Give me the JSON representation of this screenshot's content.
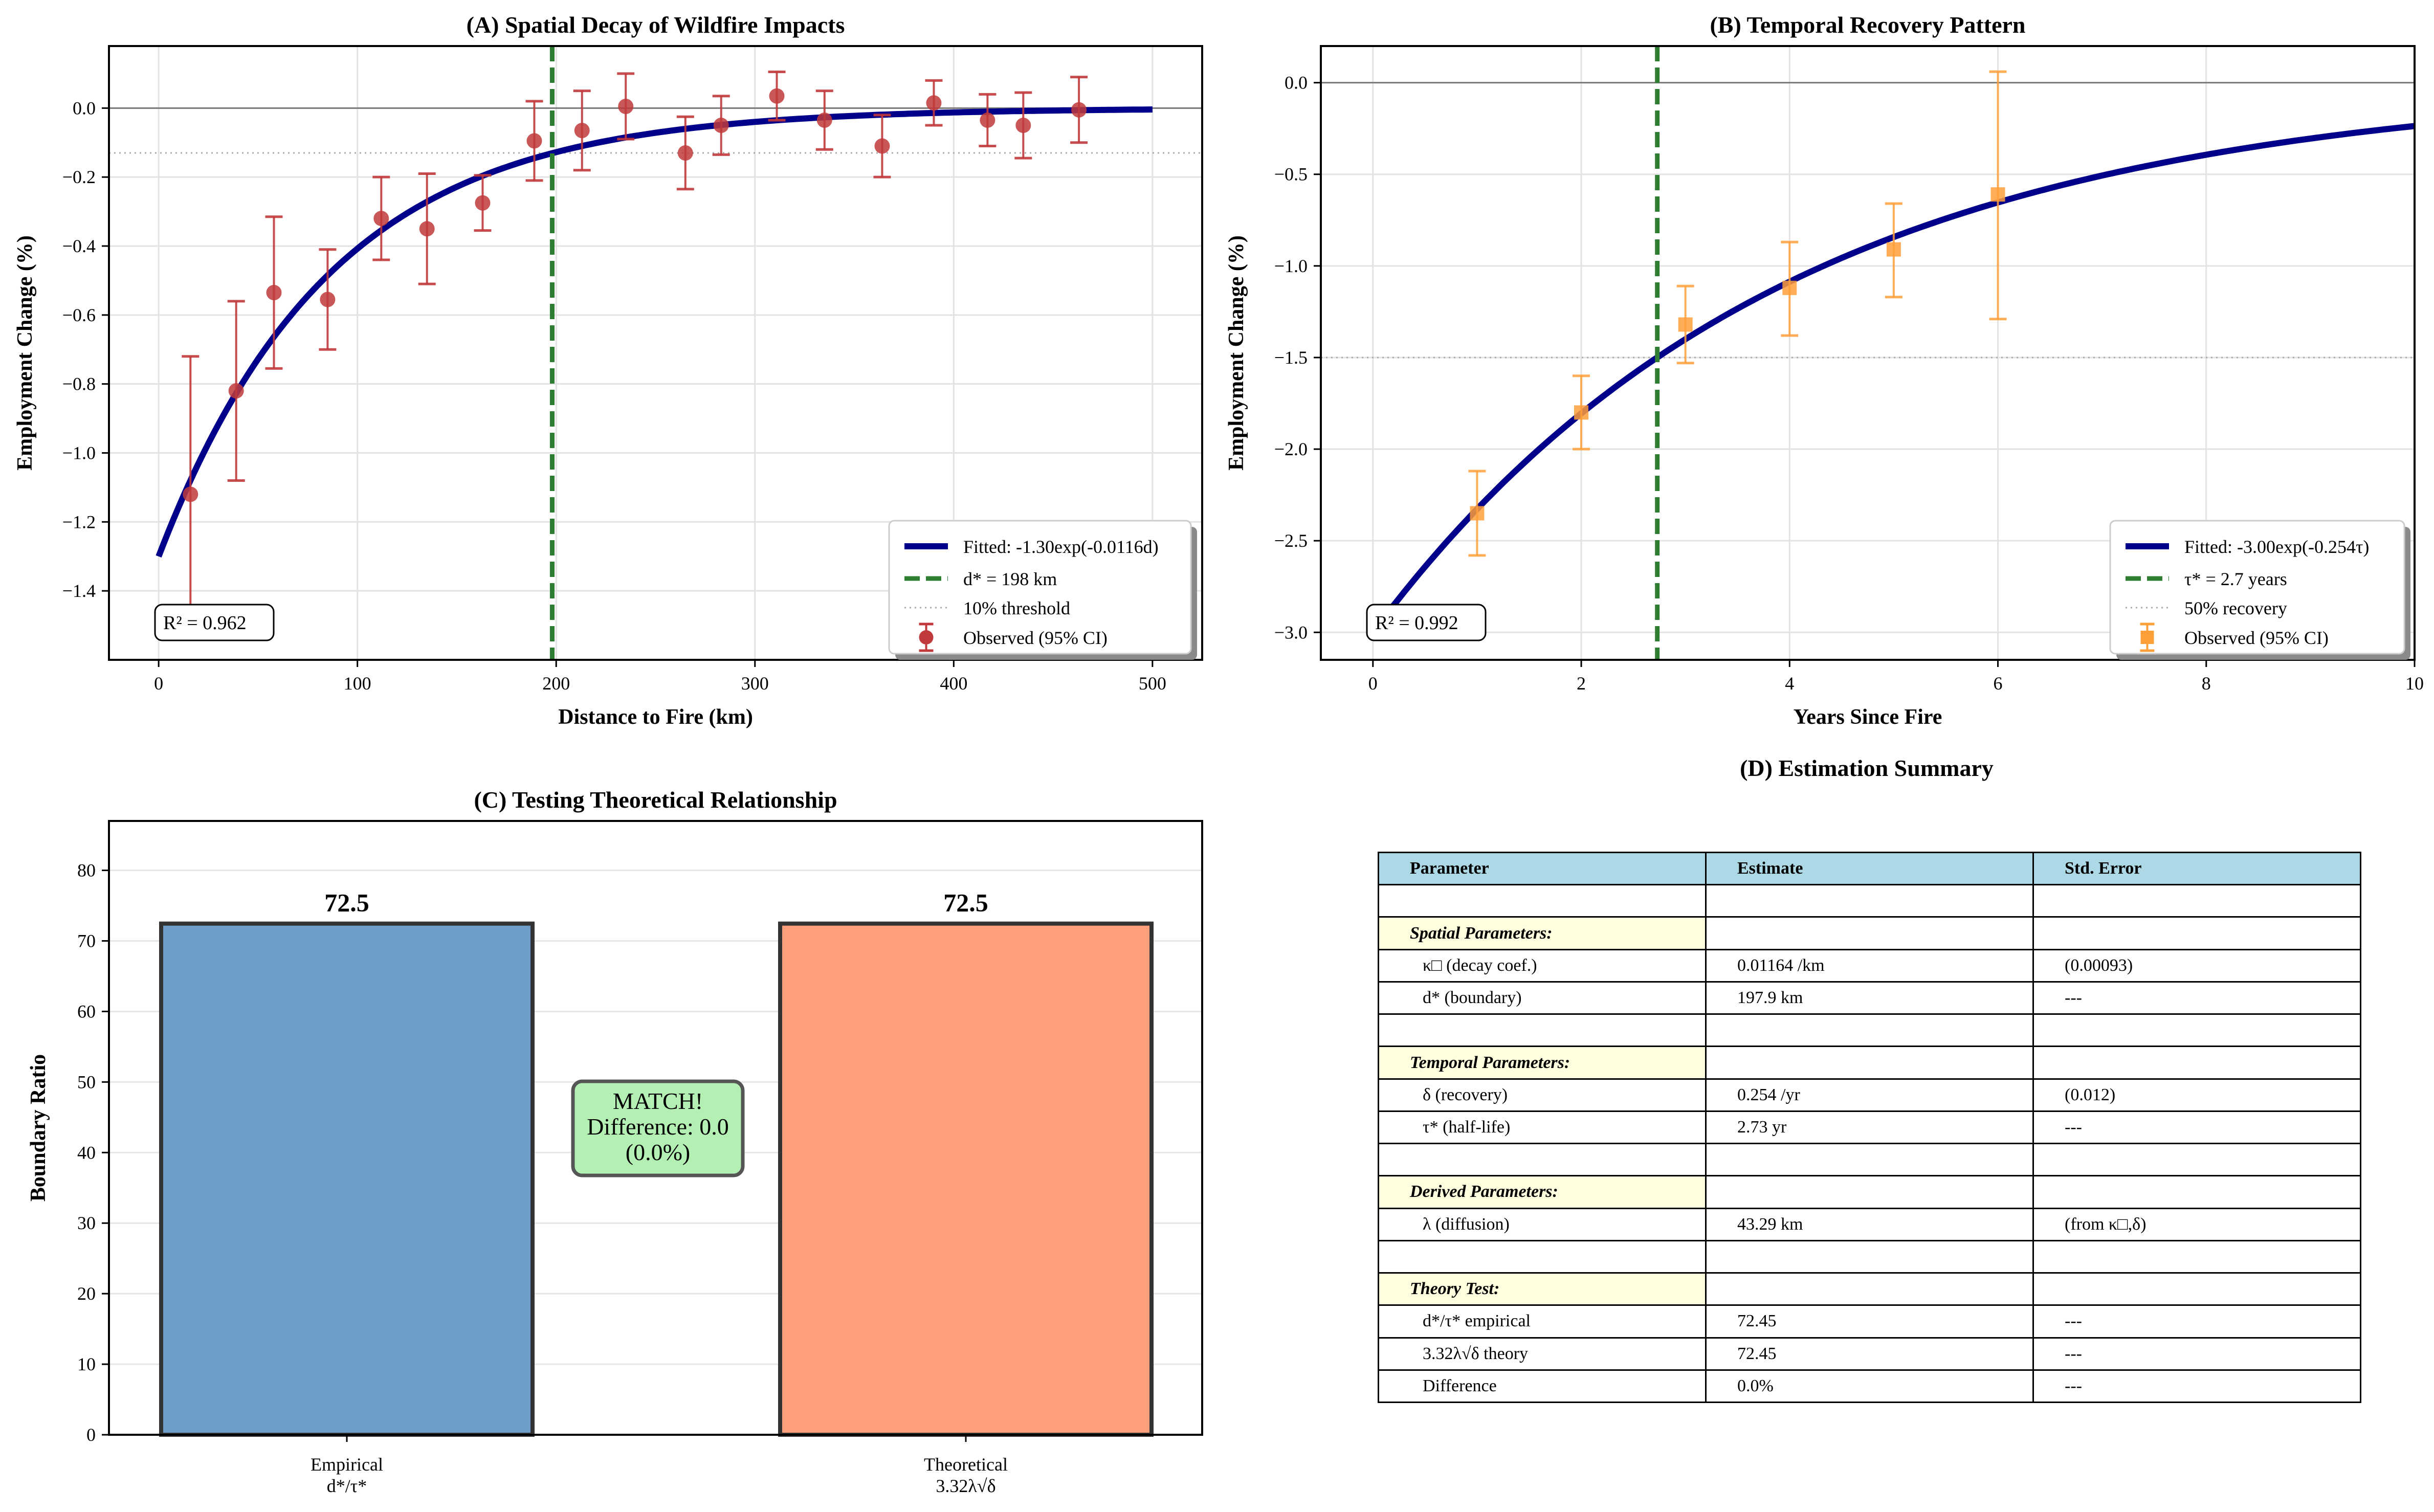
{
  "colors": {
    "fit": "#00008b",
    "boundary": "#2e7d32",
    "obsA": "#c0393b",
    "obsB": "#ff9f3a",
    "barEmp": "#6e9ec7",
    "barTheo": "#ffa07a",
    "badge": "#b4f0b4"
  },
  "panelA": {
    "title": "(A) Spatial Decay of Wildfire Impacts",
    "xlabel": "Distance to Fire (km)",
    "ylabel": "Employment Change (%)",
    "r2": "R² = 0.962",
    "legend": {
      "fit": "Fitted: -1.30exp(-0.0116d)",
      "boundary": "d* = 198 km",
      "threshold": "10% threshold",
      "obs": "Observed (95% CI)"
    }
  },
  "panelB": {
    "title": "(B) Temporal Recovery Pattern",
    "xlabel": "Years Since Fire",
    "ylabel": "Employment Change (%)",
    "r2": "R² = 0.992",
    "legend": {
      "fit": "Fitted: -3.00exp(-0.254τ)",
      "boundary": "τ* = 2.7 years",
      "threshold": "50% recovery",
      "obs": "Observed (95% CI)"
    }
  },
  "panelC": {
    "title": "(C) Testing Theoretical Relationship",
    "ylabel": "Boundary Ratio",
    "badge": {
      "line1": "MATCH!",
      "line2": "Difference: 0.0",
      "line3": "(0.0%)"
    }
  },
  "panelD": {
    "title": "(D) Estimation Summary",
    "headers": [
      "Parameter",
      "Estimate",
      "Std. Error"
    ],
    "rows": [
      {
        "p": "",
        "e": "",
        "s": "",
        "type": "blank"
      },
      {
        "p": "Spatial Parameters:",
        "e": "",
        "s": "",
        "type": "section"
      },
      {
        "p": "κ□ (decay coef.)",
        "e": "0.01164 /km",
        "s": "(0.00093)",
        "type": "param"
      },
      {
        "p": "d* (boundary)",
        "e": "197.9 km",
        "s": "---",
        "type": "param"
      },
      {
        "p": "",
        "e": "",
        "s": "",
        "type": "blank"
      },
      {
        "p": "Temporal Parameters:",
        "e": "",
        "s": "",
        "type": "section"
      },
      {
        "p": "δ (recovery)",
        "e": "0.254 /yr",
        "s": "(0.012)",
        "type": "param"
      },
      {
        "p": "τ* (half-life)",
        "e": "2.73 yr",
        "s": "---",
        "type": "param"
      },
      {
        "p": "",
        "e": "",
        "s": "",
        "type": "blank"
      },
      {
        "p": "Derived Parameters:",
        "e": "",
        "s": "",
        "type": "section"
      },
      {
        "p": "λ (diffusion)",
        "e": "43.29 km",
        "s": "(from κ□,δ)",
        "type": "param"
      },
      {
        "p": "",
        "e": "",
        "s": "",
        "type": "blank"
      },
      {
        "p": "Theory Test:",
        "e": "",
        "s": "",
        "type": "section"
      },
      {
        "p": "d*/τ* empirical",
        "e": "72.45",
        "s": "---",
        "type": "param"
      },
      {
        "p": "3.32λ√δ theory",
        "e": "72.45",
        "s": "---",
        "type": "param"
      },
      {
        "p": "Difference",
        "e": "0.0%",
        "s": "---",
        "type": "param"
      }
    ]
  },
  "chart_data": [
    {
      "type": "scatter",
      "title": "(A) Spatial Decay of Wildfire Impacts",
      "xlabel": "Distance to Fire (km)",
      "ylabel": "Employment Change (%)",
      "xlim": [
        -25,
        525
      ],
      "ylim": [
        -1.6,
        0.18
      ],
      "xticks": [
        0,
        100,
        200,
        300,
        400,
        500
      ],
      "yticks": [
        -1.4,
        -1.2,
        -1.0,
        -0.8,
        -0.6,
        -0.4,
        -0.2,
        0.0
      ],
      "xtick_labels": [
        "0",
        "100",
        "200",
        "300",
        "400",
        "500"
      ],
      "ytick_labels": [
        "−1.4",
        "−1.2",
        "−1.0",
        "−0.8",
        "−0.6",
        "−0.4",
        "−0.2",
        "0.0"
      ],
      "fit": {
        "a": -1.3,
        "k": 0.0116,
        "x_range": [
          0,
          500
        ]
      },
      "boundary_x": 198,
      "threshold_y": -0.13,
      "zero_line": 0,
      "points": [
        {
          "x": 16,
          "y": -1.12,
          "lo": -1.52,
          "hi": -0.72
        },
        {
          "x": 39,
          "y": -0.82,
          "lo": -1.08,
          "hi": -0.56
        },
        {
          "x": 58,
          "y": -0.535,
          "lo": -0.755,
          "hi": -0.315
        },
        {
          "x": 85,
          "y": -0.555,
          "lo": -0.7,
          "hi": -0.41
        },
        {
          "x": 112,
          "y": -0.32,
          "lo": -0.44,
          "hi": -0.2
        },
        {
          "x": 135,
          "y": -0.35,
          "lo": -0.51,
          "hi": -0.19
        },
        {
          "x": 163,
          "y": -0.275,
          "lo": -0.355,
          "hi": -0.195
        },
        {
          "x": 189,
          "y": -0.095,
          "lo": -0.21,
          "hi": 0.02
        },
        {
          "x": 213,
          "y": -0.065,
          "lo": -0.18,
          "hi": 0.05
        },
        {
          "x": 235,
          "y": 0.005,
          "lo": -0.09,
          "hi": 0.1
        },
        {
          "x": 265,
          "y": -0.13,
          "lo": -0.235,
          "hi": -0.025
        },
        {
          "x": 283,
          "y": -0.05,
          "lo": -0.135,
          "hi": 0.035
        },
        {
          "x": 311,
          "y": 0.035,
          "lo": -0.035,
          "hi": 0.105
        },
        {
          "x": 335,
          "y": -0.035,
          "lo": -0.12,
          "hi": 0.05
        },
        {
          "x": 364,
          "y": -0.11,
          "lo": -0.2,
          "hi": -0.02
        },
        {
          "x": 390,
          "y": 0.015,
          "lo": -0.05,
          "hi": 0.08
        },
        {
          "x": 417,
          "y": -0.035,
          "lo": -0.11,
          "hi": 0.04
        },
        {
          "x": 435,
          "y": -0.05,
          "lo": -0.145,
          "hi": 0.045
        },
        {
          "x": 463,
          "y": -0.005,
          "lo": -0.1,
          "hi": 0.09
        }
      ]
    },
    {
      "type": "scatter",
      "title": "(B) Temporal Recovery Pattern",
      "xlabel": "Years Since Fire",
      "ylabel": "Employment Change (%)",
      "xlim": [
        -0.5,
        10
      ],
      "ylim": [
        -3.15,
        0.2
      ],
      "xticks": [
        0,
        2,
        4,
        6,
        8,
        10
      ],
      "yticks": [
        -3.0,
        -2.5,
        -2.0,
        -1.5,
        -1.0,
        -0.5,
        0.0
      ],
      "xtick_labels": [
        "0",
        "2",
        "4",
        "6",
        "8",
        "10"
      ],
      "ytick_labels": [
        "−3.0",
        "−2.5",
        "−2.0",
        "−1.5",
        "−1.0",
        "−0.5",
        "0.0"
      ],
      "fit": {
        "a": -3.0,
        "k": 0.254,
        "x_range": [
          0,
          10
        ]
      },
      "boundary_x": 2.73,
      "threshold_y": -1.5,
      "zero_line": 0,
      "points": [
        {
          "x": 1,
          "y": -2.35,
          "lo": -2.58,
          "hi": -2.12
        },
        {
          "x": 2,
          "y": -1.8,
          "lo": -2.0,
          "hi": -1.6
        },
        {
          "x": 3,
          "y": -1.32,
          "lo": -1.53,
          "hi": -1.11
        },
        {
          "x": 4,
          "y": -1.12,
          "lo": -1.38,
          "hi": -0.87
        },
        {
          "x": 5,
          "y": -0.91,
          "lo": -1.17,
          "hi": -0.66
        },
        {
          "x": 6,
          "y": -0.61,
          "lo": -1.29,
          "hi": 0.06
        }
      ]
    },
    {
      "type": "bar",
      "title": "(C) Testing Theoretical Relationship",
      "ylabel": "Boundary Ratio",
      "ylim": [
        0,
        87
      ],
      "yticks": [
        0,
        10,
        20,
        30,
        40,
        50,
        60,
        70,
        80
      ],
      "ytick_labels": [
        "0",
        "10",
        "20",
        "30",
        "40",
        "50",
        "60",
        "70",
        "80"
      ],
      "categories": [
        {
          "line1": "Empirical",
          "line2": "d*/τ*"
        },
        {
          "line1": "Theoretical",
          "line2": "3.32λ√δ"
        }
      ],
      "values": [
        72.45,
        72.45
      ],
      "value_labels": [
        "72.5",
        "72.5"
      ]
    }
  ]
}
